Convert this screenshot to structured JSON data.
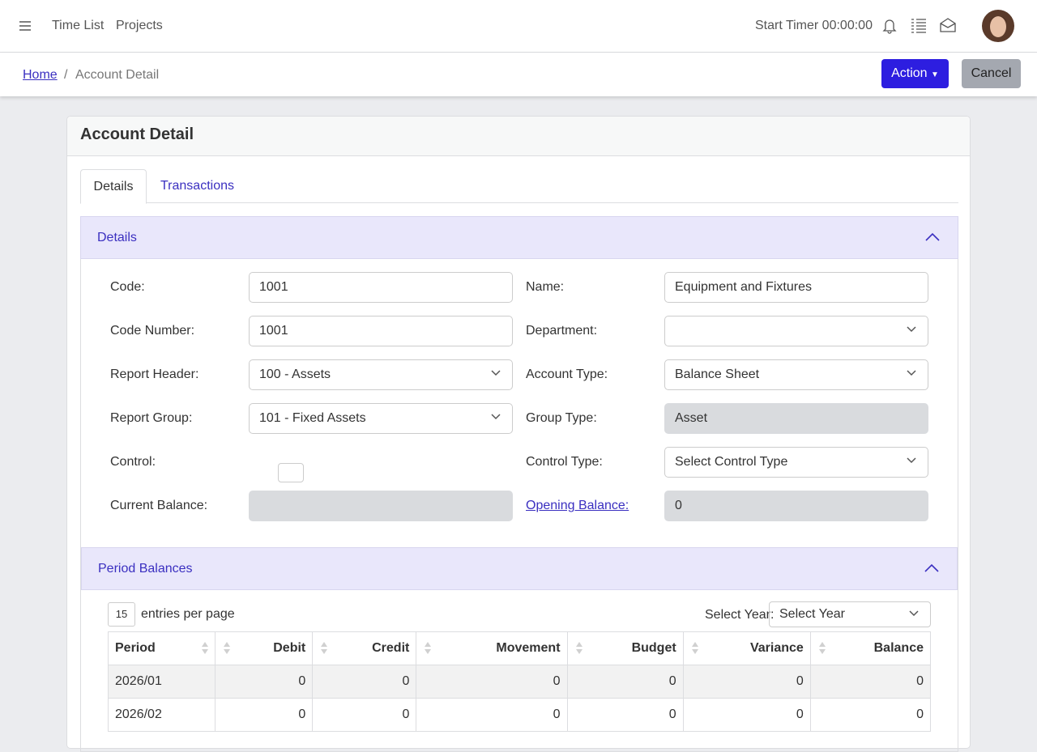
{
  "nav": {
    "links": [
      "Time List",
      "Projects"
    ],
    "timer": "Start Timer 00:00:00"
  },
  "breadcrumb": {
    "home": "Home",
    "current": "Account Detail"
  },
  "actions": {
    "action": "Action",
    "cancel": "Cancel"
  },
  "card": {
    "title": "Account Detail",
    "tabs": [
      "Details",
      "Transactions"
    ]
  },
  "details": {
    "title": "Details",
    "left": [
      {
        "label": "Code:",
        "value": "1001"
      },
      {
        "label": "Code Number:",
        "value": "1001"
      },
      {
        "label": "Report Header:",
        "value": "100 - Assets"
      },
      {
        "label": "Report Group:",
        "value": "101 - Fixed Assets"
      },
      {
        "label": "Control:"
      },
      {
        "label": "Current Balance:"
      }
    ],
    "right": [
      {
        "label": "Name:",
        "value": "Equipment and Fixtures"
      },
      {
        "label": "Department:"
      },
      {
        "label": "Account Type:",
        "value": "Balance Sheet"
      },
      {
        "label": "Group Type:",
        "value": "Asset"
      },
      {
        "label": "Control Type:",
        "value": "Select Control Type"
      },
      {
        "label": "Opening Balance:",
        "value": "0"
      }
    ]
  },
  "period": {
    "title": "Period Balances",
    "page_size": "15",
    "entries_label": "entries per page",
    "year_label": "Select Year:",
    "year_value": "Select Year",
    "columns": [
      "Period",
      "Debit",
      "Credit",
      "Movement",
      "Budget",
      "Variance",
      "Balance"
    ],
    "rows": [
      [
        "2026/01",
        0,
        0,
        0,
        0,
        0,
        0
      ],
      [
        "2026/02",
        0,
        0,
        0,
        0,
        0,
        0
      ]
    ]
  }
}
